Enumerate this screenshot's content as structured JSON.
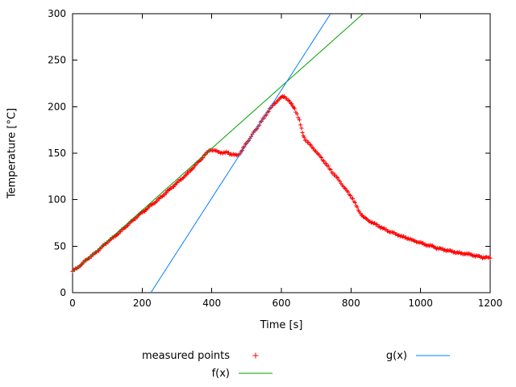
{
  "chart_data": {
    "type": "scatter",
    "title": "",
    "xlabel": "Time [s]",
    "ylabel": "Temperature [°C]",
    "xlim": [
      0,
      1200
    ],
    "ylim": [
      0,
      300
    ],
    "xticks": [
      0,
      200,
      400,
      600,
      800,
      1000,
      1200
    ],
    "yticks": [
      0,
      50,
      100,
      150,
      200,
      250,
      300
    ],
    "grid": false,
    "legend_position": "below",
    "background": "#ffffff",
    "axis_color": "#000000",
    "series": [
      {
        "name": "measured points",
        "type": "points",
        "marker": "plus",
        "color": "#ff0000",
        "points": [
          [
            0,
            23
          ],
          [
            15,
            27
          ],
          [
            30,
            32
          ],
          [
            45,
            37
          ],
          [
            60,
            41
          ],
          [
            75,
            46
          ],
          [
            90,
            51
          ],
          [
            105,
            56
          ],
          [
            120,
            60
          ],
          [
            135,
            65
          ],
          [
            150,
            70
          ],
          [
            165,
            75
          ],
          [
            180,
            80
          ],
          [
            195,
            85
          ],
          [
            210,
            89
          ],
          [
            225,
            94
          ],
          [
            240,
            98
          ],
          [
            255,
            103
          ],
          [
            270,
            108
          ],
          [
            285,
            113
          ],
          [
            300,
            118
          ],
          [
            315,
            123
          ],
          [
            330,
            128
          ],
          [
            345,
            134
          ],
          [
            360,
            140
          ],
          [
            375,
            146
          ],
          [
            388,
            151
          ],
          [
            395,
            154
          ],
          [
            405,
            153
          ],
          [
            415,
            152
          ],
          [
            425,
            151
          ],
          [
            435,
            150
          ],
          [
            445,
            151
          ],
          [
            455,
            149
          ],
          [
            465,
            148
          ],
          [
            475,
            148
          ],
          [
            482,
            150
          ],
          [
            490,
            155
          ],
          [
            500,
            161
          ],
          [
            510,
            166
          ],
          [
            520,
            172
          ],
          [
            530,
            177
          ],
          [
            540,
            183
          ],
          [
            550,
            188
          ],
          [
            560,
            194
          ],
          [
            570,
            199
          ],
          [
            580,
            203
          ],
          [
            590,
            207
          ],
          [
            600,
            210
          ],
          [
            608,
            211
          ],
          [
            615,
            209
          ],
          [
            622,
            206
          ],
          [
            630,
            202
          ],
          [
            638,
            198
          ],
          [
            645,
            192
          ],
          [
            652,
            185
          ],
          [
            658,
            176
          ],
          [
            663,
            169
          ],
          [
            668,
            165
          ],
          [
            675,
            162
          ],
          [
            685,
            158
          ],
          [
            695,
            154
          ],
          [
            705,
            149
          ],
          [
            715,
            145
          ],
          [
            725,
            140
          ],
          [
            735,
            135
          ],
          [
            745,
            130
          ],
          [
            755,
            126
          ],
          [
            765,
            121
          ],
          [
            775,
            116
          ],
          [
            785,
            111
          ],
          [
            795,
            106
          ],
          [
            805,
            101
          ],
          [
            812,
            96
          ],
          [
            818,
            91
          ],
          [
            824,
            87
          ],
          [
            830,
            84
          ],
          [
            838,
            81
          ],
          [
            848,
            78
          ],
          [
            858,
            76
          ],
          [
            868,
            74
          ],
          [
            878,
            72
          ],
          [
            888,
            70
          ],
          [
            898,
            68
          ],
          [
            908,
            66
          ],
          [
            918,
            65
          ],
          [
            928,
            63
          ],
          [
            938,
            62
          ],
          [
            948,
            60
          ],
          [
            958,
            59
          ],
          [
            968,
            58
          ],
          [
            978,
            56
          ],
          [
            988,
            55
          ],
          [
            998,
            54
          ],
          [
            1010,
            52
          ],
          [
            1022,
            51
          ],
          [
            1034,
            50
          ],
          [
            1046,
            48
          ],
          [
            1058,
            47
          ],
          [
            1070,
            46
          ],
          [
            1082,
            45
          ],
          [
            1094,
            44
          ],
          [
            1106,
            43
          ],
          [
            1118,
            42
          ],
          [
            1130,
            42
          ],
          [
            1142,
            41
          ],
          [
            1154,
            40
          ],
          [
            1166,
            39
          ],
          [
            1178,
            38
          ],
          [
            1190,
            38
          ],
          [
            1200,
            37
          ]
        ]
      },
      {
        "name": "f(x)",
        "type": "linear-line",
        "color": "#00a000",
        "slope": 0.333,
        "intercept": 22
      },
      {
        "name": "g(x)",
        "type": "linear-line",
        "color": "#0080ff",
        "slope": 0.581,
        "intercept": -130.7
      }
    ]
  }
}
